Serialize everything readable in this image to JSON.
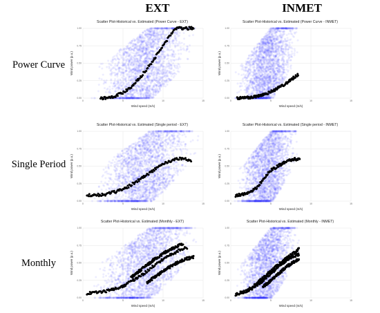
{
  "headers": {
    "left": "EXT",
    "right": "INMET"
  },
  "rows": [
    "Power Curve",
    "Single Period",
    "Monthly"
  ],
  "chart_data": [
    {
      "type": "scatter",
      "title": "Scatter Plot-Historical vs. Estimated (Power Curve - EXT)",
      "xlabel": "Wind speed (m/s)",
      "ylabel": "Wind power (p.u.)",
      "xlim": [
        0,
        15
      ],
      "ylim": [
        0,
        1
      ],
      "xticks": [
        "0",
        "5",
        "10",
        "15"
      ],
      "yticks": [
        "0.00",
        "0.25",
        "0.50",
        "0.75",
        "1.00"
      ],
      "grid": true,
      "point_colors": [
        "#3333ff",
        "#000000"
      ],
      "series": [
        {
          "cloud": {
            "xmin": 0.5,
            "xpeak": 8,
            "xmax": 14.5,
            "ymax": 1.0
          }
        },
        {
          "curve": [
            [
              2.2,
              0
            ],
            [
              3,
              0.005
            ],
            [
              4,
              0.03
            ],
            [
              5,
              0.08
            ],
            [
              6,
              0.16
            ],
            [
              7,
              0.28
            ],
            [
              8,
              0.42
            ],
            [
              9,
              0.58
            ],
            [
              10,
              0.75
            ],
            [
              11,
              0.92
            ],
            [
              11.6,
              1.0
            ],
            [
              13,
              1.0
            ],
            [
              13.8,
              1.0
            ]
          ]
        }
      ]
    },
    {
      "type": "scatter",
      "title": "Scatter Plot-Historical vs. Estimated (Power Curve - INMET)",
      "xlabel": "Wind speed (m/s)",
      "ylabel": "Wind power (p.u.)",
      "xlim": [
        0,
        15
      ],
      "ylim": [
        0,
        1
      ],
      "xticks": [
        "0",
        "5",
        "10",
        "15"
      ],
      "yticks": [
        "0.00",
        "0.25",
        "0.50",
        "0.75",
        "1.00"
      ],
      "grid": true,
      "point_colors": [
        "#3333ff",
        "#000000"
      ],
      "series": [
        {
          "cloud": {
            "xmin": 0.3,
            "xpeak": 4.5,
            "xmax": 8.8,
            "ymax": 1.0
          }
        },
        {
          "curve": [
            [
              0.8,
              0
            ],
            [
              2,
              0.005
            ],
            [
              3,
              0.02
            ],
            [
              4,
              0.05
            ],
            [
              5,
              0.09
            ],
            [
              6,
              0.15
            ],
            [
              7,
              0.22
            ],
            [
              7.8,
              0.29
            ],
            [
              8.4,
              0.34
            ]
          ]
        }
      ]
    },
    {
      "type": "scatter",
      "title": "Scatter Plot-Historical vs. Estimated (Single period - EXT)",
      "xlabel": "Wind speed (m/s)",
      "ylabel": "Wind power (p.u.)",
      "xlim": [
        0,
        15
      ],
      "ylim": [
        0,
        1
      ],
      "xticks": [
        "0",
        "5",
        "10",
        "15"
      ],
      "yticks": [
        "0.00",
        "0.25",
        "0.50",
        "0.75",
        "1.00"
      ],
      "grid": true,
      "point_colors": [
        "#3333ff",
        "#000000"
      ],
      "series": [
        {
          "cloud": {
            "xmin": 0.5,
            "xpeak": 8,
            "xmax": 14.5,
            "ymax": 1.0
          }
        },
        {
          "curve": [
            [
              0.5,
              0.08
            ],
            [
              2,
              0.09
            ],
            [
              3,
              0.1
            ],
            [
              4,
              0.13
            ],
            [
              5,
              0.17
            ],
            [
              6,
              0.23
            ],
            [
              7,
              0.3
            ],
            [
              8,
              0.38
            ],
            [
              9,
              0.46
            ],
            [
              10,
              0.53
            ],
            [
              11,
              0.58
            ],
            [
              12,
              0.61
            ],
            [
              13,
              0.6
            ],
            [
              13.5,
              0.58
            ]
          ]
        }
      ]
    },
    {
      "type": "scatter",
      "title": "Scatter Plot-Historical vs. Estimated (Single period - INMET)",
      "xlabel": "Wind speed (m/s)",
      "ylabel": "Wind power (p.u.)",
      "xlim": [
        0,
        15
      ],
      "ylim": [
        0,
        1
      ],
      "xticks": [
        "0",
        "5",
        "10",
        "15"
      ],
      "yticks": [
        "0.00",
        "0.25",
        "0.50",
        "0.75",
        "1.00"
      ],
      "grid": true,
      "point_colors": [
        "#3333ff",
        "#000000"
      ],
      "series": [
        {
          "cloud": {
            "xmin": 0.3,
            "xpeak": 4.5,
            "xmax": 8.8,
            "ymax": 1.0
          }
        },
        {
          "curve": [
            [
              0.6,
              0.08
            ],
            [
              1.5,
              0.1
            ],
            [
              2.5,
              0.13
            ],
            [
              3.3,
              0.2
            ],
            [
              4,
              0.3
            ],
            [
              4.5,
              0.38
            ],
            [
              5,
              0.44
            ],
            [
              6,
              0.51
            ],
            [
              7,
              0.57
            ],
            [
              8,
              0.6
            ],
            [
              8.6,
              0.6
            ]
          ]
        }
      ]
    },
    {
      "type": "scatter",
      "title": "Scatter Plot-Historical vs. Estimated (Monthly - EXT)",
      "xlabel": "Wind speed (m/s)",
      "ylabel": "Wind power (p.u.)",
      "xlim": [
        0,
        15
      ],
      "ylim": [
        0,
        1
      ],
      "xticks": [
        "0",
        "5",
        "10",
        "15"
      ],
      "yticks": [
        "0.00",
        "0.25",
        "0.50",
        "0.75",
        "1.00"
      ],
      "grid": true,
      "point_colors": [
        "#3333ff",
        "#000000"
      ],
      "series": [
        {
          "cloud": {
            "xmin": 0.5,
            "xpeak": 8,
            "xmax": 14.5,
            "ymax": 1.0
          }
        },
        {
          "curve": [
            [
              0.5,
              0.06
            ],
            [
              2,
              0.08
            ],
            [
              3,
              0.1
            ],
            [
              4,
              0.13
            ],
            [
              5,
              0.17
            ],
            [
              6,
              0.23
            ],
            [
              7,
              0.3
            ],
            [
              8,
              0.38
            ],
            [
              9,
              0.47
            ],
            [
              10,
              0.55
            ],
            [
              11,
              0.62
            ],
            [
              12,
              0.68
            ],
            [
              13,
              0.72
            ]
          ]
        },
        {
          "curve": [
            [
              6,
              0.3
            ],
            [
              7,
              0.38
            ],
            [
              8,
              0.47
            ],
            [
              9,
              0.56
            ],
            [
              10,
              0.63
            ],
            [
              11,
              0.7
            ],
            [
              12,
              0.75
            ],
            [
              12.5,
              0.77
            ]
          ]
        },
        {
          "curve": [
            [
              8,
              0.22
            ],
            [
              9,
              0.3
            ],
            [
              10,
              0.38
            ],
            [
              11,
              0.45
            ],
            [
              12,
              0.52
            ],
            [
              13,
              0.56
            ],
            [
              13.8,
              0.58
            ]
          ]
        }
      ]
    },
    {
      "type": "scatter",
      "title": "Scatter Plot-Historical vs. Estimated (Monthly - INMET)",
      "xlabel": "Wind speed (m/s)",
      "ylabel": "Wind power (p.u.)",
      "xlim": [
        0,
        15
      ],
      "ylim": [
        0,
        1
      ],
      "xticks": [
        "0",
        "5",
        "10",
        "15"
      ],
      "yticks": [
        "0.00",
        "0.25",
        "0.50",
        "0.75",
        "1.00"
      ],
      "grid": true,
      "point_colors": [
        "#3333ff",
        "#000000"
      ],
      "series": [
        {
          "cloud": {
            "xmin": 0.3,
            "xpeak": 4.5,
            "xmax": 8.8,
            "ymax": 1.0
          }
        },
        {
          "curve": [
            [
              0.6,
              0.05
            ],
            [
              1.5,
              0.08
            ],
            [
              2.5,
              0.12
            ],
            [
              3.5,
              0.2
            ],
            [
              4.5,
              0.3
            ],
            [
              5.5,
              0.4
            ],
            [
              6.5,
              0.5
            ],
            [
              7.5,
              0.58
            ],
            [
              8.5,
              0.62
            ]
          ]
        },
        {
          "curve": [
            [
              2,
              0.1
            ],
            [
              3,
              0.18
            ],
            [
              4,
              0.28
            ],
            [
              5,
              0.38
            ],
            [
              6,
              0.48
            ],
            [
              7,
              0.57
            ],
            [
              8,
              0.65
            ],
            [
              8.5,
              0.7
            ]
          ]
        },
        {
          "curve": [
            [
              4,
              0.15
            ],
            [
              5,
              0.25
            ],
            [
              6,
              0.35
            ],
            [
              7,
              0.45
            ],
            [
              8,
              0.52
            ],
            [
              8.5,
              0.55
            ]
          ]
        }
      ]
    }
  ]
}
